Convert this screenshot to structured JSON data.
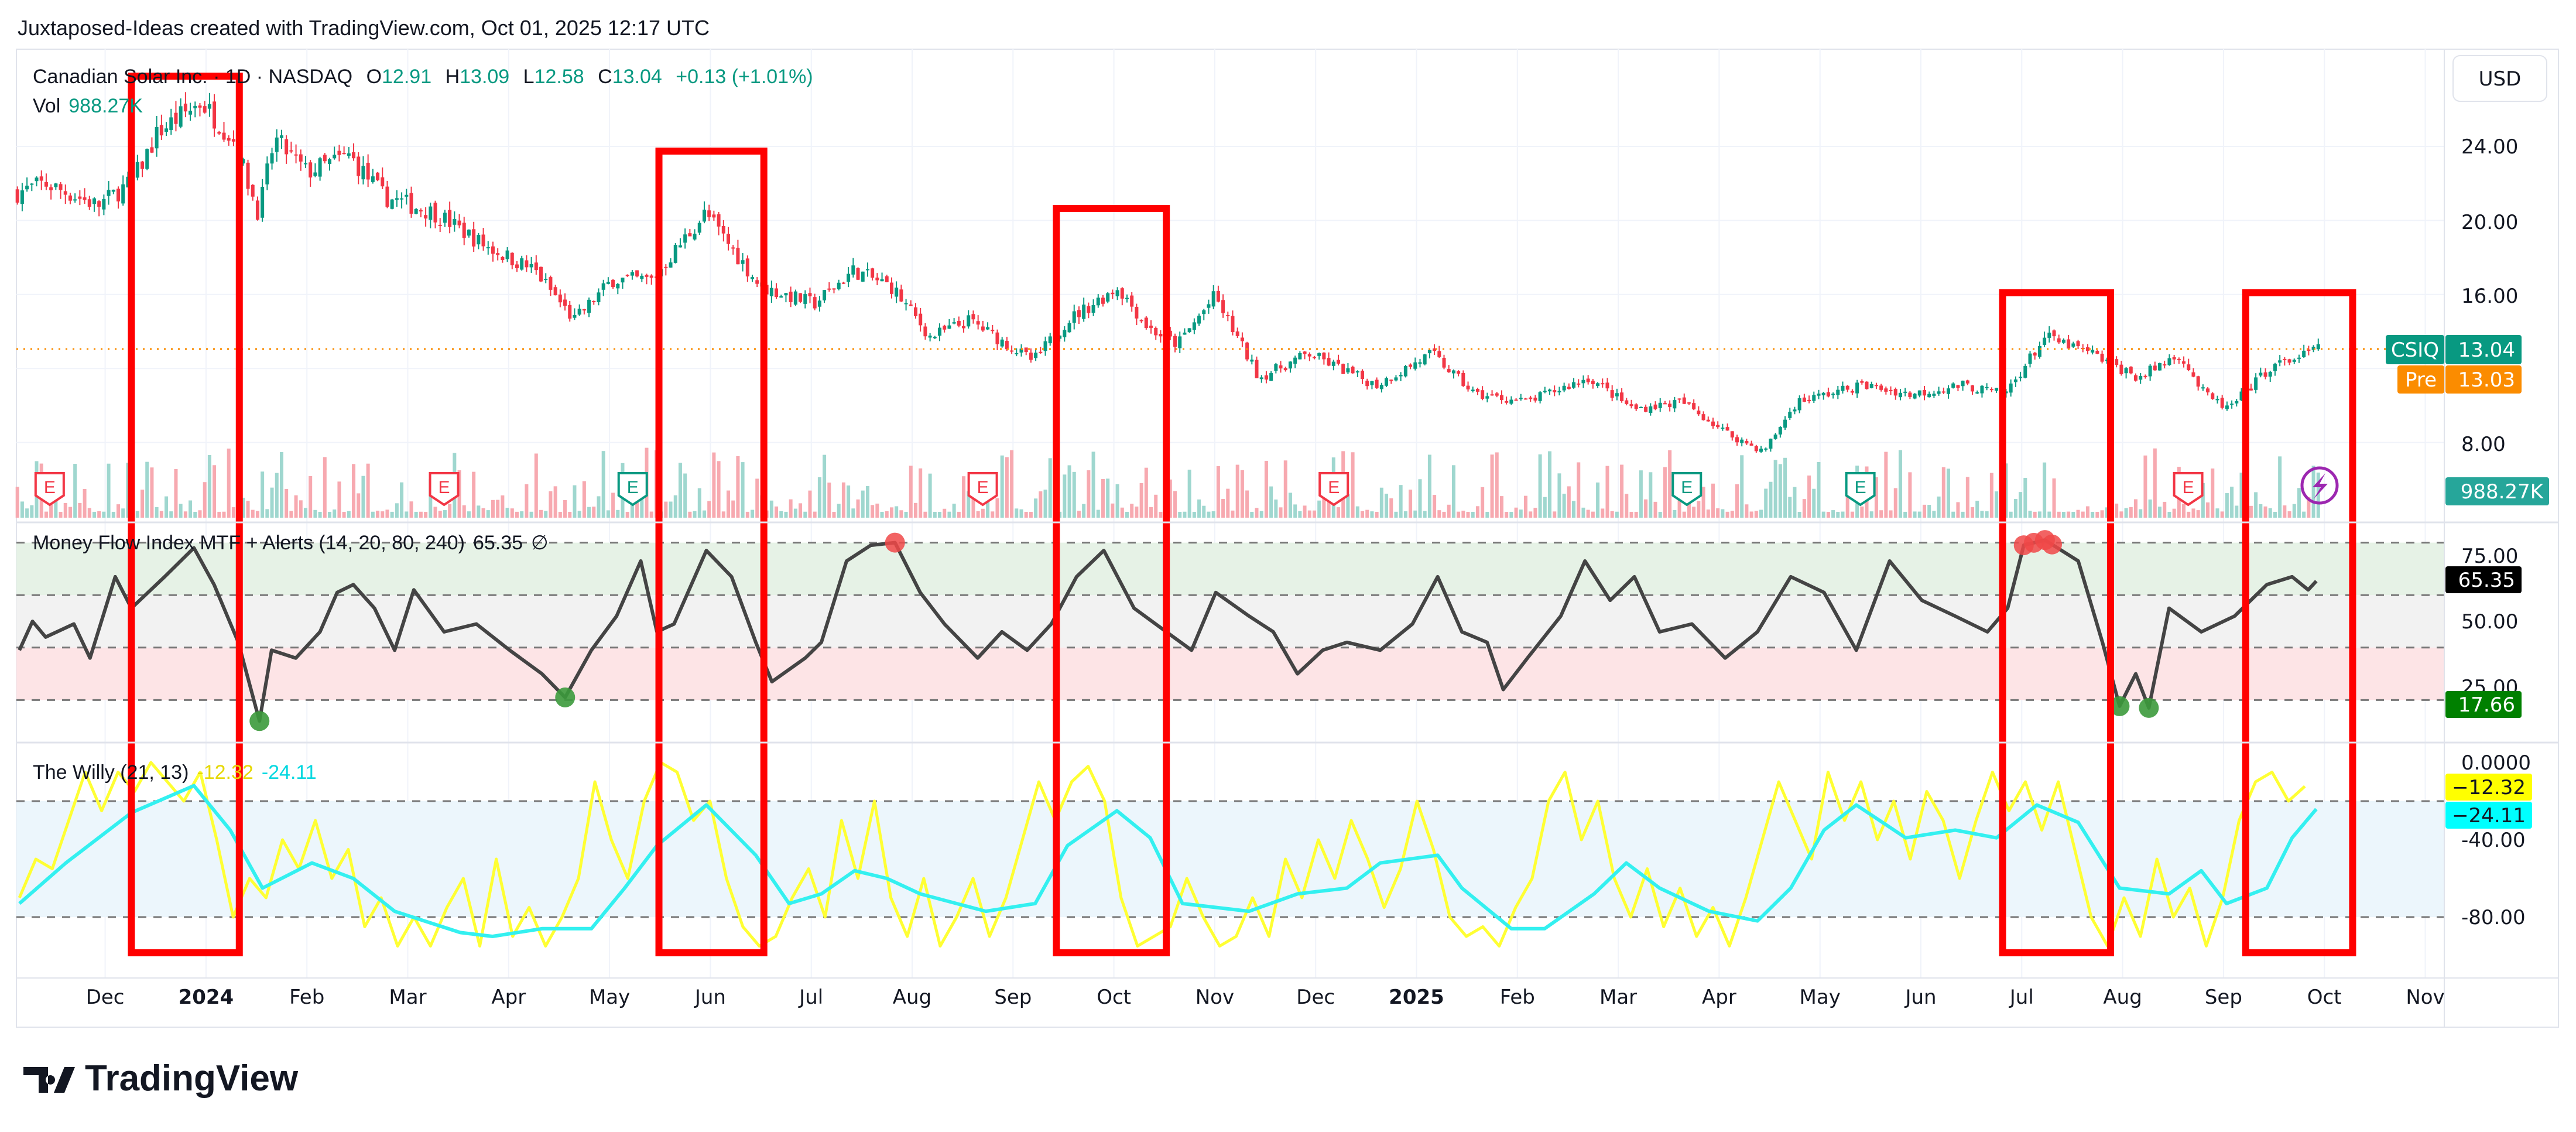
{
  "header": {
    "attribution": "Juxtaposed-Ideas created with TradingView.com, Oct 01, 2025 12:17 UTC"
  },
  "legend": {
    "symbol_name": "Canadian Solar Inc. · 1D · NASDAQ",
    "open_label": "O",
    "open": "12.91",
    "high_label": "H",
    "high": "13.09",
    "low_label": "L",
    "low": "12.58",
    "close_label": "C",
    "close": "13.04",
    "change": "+0.13 (+1.01%)",
    "vol_label": "Vol",
    "vol": "988.27K"
  },
  "price_axis": {
    "currency_button": "USD",
    "ticks": [
      "24.00",
      "20.00",
      "16.00",
      "8.00"
    ],
    "ticker_badge": "CSIQ",
    "last_price": "13.04",
    "pre_badge": "Pre",
    "pre_price": "13.03",
    "volume_badge": "988.27K"
  },
  "mfi": {
    "legend": "Money Flow Index MTF + Alerts (14, 20, 80, 240)",
    "value": "65.35",
    "symbol": "∅",
    "ticks": [
      "75.00",
      "50.00",
      "25.00"
    ],
    "badge_value": "65.35",
    "alert_badge": "17.66"
  },
  "willy": {
    "legend": "The Willy (21, 13)",
    "fast_value": "-12.32",
    "slow_value": "-24.11",
    "ticks": [
      "0.0000",
      "-40.00",
      "-80.00"
    ],
    "fast_badge": "−12.32",
    "slow_badge": "−24.11"
  },
  "time_axis": [
    "Dec",
    "2024",
    "Feb",
    "Mar",
    "Apr",
    "May",
    "Jun",
    "Jul",
    "Aug",
    "Sep",
    "Oct",
    "Nov",
    "Dec",
    "2025",
    "Feb",
    "Mar",
    "Apr",
    "May",
    "Jun",
    "Jul",
    "Aug",
    "Sep",
    "Oct",
    "Nov"
  ],
  "earnings_marker": "E",
  "footer": {
    "logo": "TradingView"
  },
  "colors": {
    "up": "#089981",
    "down": "#f23645",
    "mfi": "#444444",
    "willy_fast": "#ffff33",
    "willy_slow": "#33f0f0",
    "highlight": "#ff0000",
    "pre": "#fb8c00"
  },
  "chart_data": [
    {
      "type": "candlestick",
      "title": "CSIQ daily price",
      "x_unit": "months since 2023-12-01",
      "ylim": [
        6,
        28
      ],
      "close_anchors": [
        [
          -0.87,
          21.5
        ],
        [
          -0.6,
          22
        ],
        [
          -0.07,
          20.8
        ],
        [
          0.27,
          22.1
        ],
        [
          0.53,
          24.8
        ],
        [
          0.95,
          26.4
        ],
        [
          1.27,
          24.4
        ],
        [
          1.52,
          20.4
        ],
        [
          1.68,
          24.4
        ],
        [
          2.0,
          22.6
        ],
        [
          2.42,
          23.5
        ],
        [
          2.76,
          21.3
        ],
        [
          3.27,
          20.4
        ],
        [
          3.78,
          18.6
        ],
        [
          4.26,
          17.3
        ],
        [
          4.65,
          14.6
        ],
        [
          5.03,
          16.8
        ],
        [
          5.42,
          16.8
        ],
        [
          5.95,
          20.4
        ],
        [
          6.5,
          16.4
        ],
        [
          7.03,
          15.5
        ],
        [
          7.42,
          17.3
        ],
        [
          7.8,
          16.4
        ],
        [
          8.18,
          13.7
        ],
        [
          8.57,
          14.6
        ],
        [
          9.2,
          12.4
        ],
        [
          9.54,
          14.6
        ],
        [
          10.04,
          16.4
        ],
        [
          10.34,
          14.2
        ],
        [
          10.63,
          13.3
        ],
        [
          11.0,
          15.9
        ],
        [
          11.44,
          11.5
        ],
        [
          11.93,
          12.8
        ],
        [
          12.6,
          11.1
        ],
        [
          13.15,
          12.8
        ],
        [
          13.58,
          10.6
        ],
        [
          14.09,
          10.2
        ],
        [
          14.71,
          11.5
        ],
        [
          15.15,
          9.8
        ],
        [
          15.63,
          10.2
        ],
        [
          16.11,
          8.4
        ],
        [
          16.44,
          7.5
        ],
        [
          16.77,
          10.2
        ],
        [
          17.42,
          11.1
        ],
        [
          17.9,
          10.6
        ],
        [
          18.41,
          11.1
        ],
        [
          18.83,
          10.6
        ],
        [
          19.23,
          13.7
        ],
        [
          19.69,
          12.8
        ],
        [
          20.16,
          11.5
        ],
        [
          20.56,
          12.8
        ],
        [
          20.81,
          10.6
        ],
        [
          21.05,
          9.8
        ],
        [
          21.45,
          12.0
        ],
        [
          21.94,
          13.04
        ]
      ],
      "last": {
        "open": 12.91,
        "high": 13.09,
        "low": 12.58,
        "close": 13.04
      },
      "earnings_dates_t": [
        -0.55,
        3.36,
        5.23,
        8.7,
        12.18,
        15.68,
        17.4,
        20.65
      ],
      "earnings_colors": [
        "down",
        "down",
        "up",
        "down",
        "down",
        "up",
        "up",
        "down"
      ]
    },
    {
      "type": "line",
      "title": "Money Flow Index MTF + Alerts (14, 20, 80, 240)",
      "ylim": [
        10,
        85
      ],
      "levels": [
        80,
        60,
        40,
        20
      ],
      "points": [
        [
          -0.85,
          39
        ],
        [
          -0.72,
          50
        ],
        [
          -0.59,
          44
        ],
        [
          -0.31,
          49
        ],
        [
          -0.15,
          36
        ],
        [
          0.1,
          67
        ],
        [
          0.26,
          55
        ],
        [
          0.59,
          67
        ],
        [
          0.88,
          78
        ],
        [
          1.08,
          64
        ],
        [
          1.32,
          42
        ],
        [
          1.53,
          12
        ],
        [
          1.65,
          39
        ],
        [
          1.89,
          36
        ],
        [
          2.13,
          46
        ],
        [
          2.3,
          61
        ],
        [
          2.46,
          64
        ],
        [
          2.67,
          55
        ],
        [
          2.87,
          39
        ],
        [
          3.06,
          62
        ],
        [
          3.36,
          46
        ],
        [
          3.68,
          49
        ],
        [
          4.01,
          39
        ],
        [
          4.33,
          30
        ],
        [
          4.56,
          21
        ],
        [
          4.82,
          39
        ],
        [
          5.07,
          52
        ],
        [
          5.31,
          73
        ],
        [
          5.47,
          46
        ],
        [
          5.64,
          49
        ],
        [
          5.96,
          77
        ],
        [
          6.21,
          67
        ],
        [
          6.45,
          42
        ],
        [
          6.61,
          27
        ],
        [
          6.94,
          36
        ],
        [
          7.1,
          42
        ],
        [
          7.35,
          73
        ],
        [
          7.59,
          79
        ],
        [
          7.83,
          80
        ],
        [
          8.08,
          61
        ],
        [
          8.32,
          49
        ],
        [
          8.65,
          36
        ],
        [
          8.89,
          46
        ],
        [
          9.14,
          39
        ],
        [
          9.38,
          49
        ],
        [
          9.63,
          67
        ],
        [
          9.9,
          77
        ],
        [
          10.2,
          55
        ],
        [
          10.52,
          46
        ],
        [
          10.77,
          39
        ],
        [
          11.01,
          61
        ],
        [
          11.34,
          52
        ],
        [
          11.58,
          46
        ],
        [
          11.82,
          30
        ],
        [
          12.07,
          39
        ],
        [
          12.31,
          42
        ],
        [
          12.64,
          39
        ],
        [
          12.96,
          49
        ],
        [
          13.21,
          67
        ],
        [
          13.45,
          46
        ],
        [
          13.7,
          42
        ],
        [
          13.86,
          24
        ],
        [
          14.1,
          36
        ],
        [
          14.43,
          52
        ],
        [
          14.67,
          73
        ],
        [
          14.92,
          58
        ],
        [
          15.16,
          67
        ],
        [
          15.41,
          46
        ],
        [
          15.73,
          49
        ],
        [
          16.06,
          36
        ],
        [
          16.38,
          46
        ],
        [
          16.71,
          67
        ],
        [
          17.04,
          61
        ],
        [
          17.36,
          39
        ],
        [
          17.69,
          73
        ],
        [
          18.01,
          58
        ],
        [
          18.34,
          52
        ],
        [
          18.66,
          46
        ],
        [
          18.86,
          55
        ],
        [
          19.02,
          79
        ],
        [
          19.23,
          81
        ],
        [
          19.56,
          73
        ],
        [
          19.8,
          42
        ],
        [
          19.97,
          17.66
        ],
        [
          20.13,
          30
        ],
        [
          20.26,
          17
        ],
        [
          20.46,
          55
        ],
        [
          20.78,
          46
        ],
        [
          21.11,
          52
        ],
        [
          21.43,
          64
        ],
        [
          21.68,
          67
        ],
        [
          21.84,
          62
        ],
        [
          21.92,
          65.35
        ]
      ],
      "oversold_alerts_t": [
        1.53,
        4.56,
        19.97,
        20.26
      ],
      "overbought_alerts_t": [
        7.83,
        19.02,
        19.12,
        19.23,
        19.3
      ]
    },
    {
      "type": "line",
      "title": "The Willy (21, 13)",
      "ylim": [
        -100,
        5
      ],
      "levels": [
        -20,
        -80
      ],
      "series": [
        {
          "name": "fast",
          "t_start": -0.85,
          "t_step": 0.163,
          "values": [
            -70,
            -50,
            -55,
            -30,
            -5,
            -25,
            -5,
            -15,
            0,
            -10,
            -20,
            -5,
            -40,
            -80,
            -60,
            -70,
            -40,
            -55,
            -30,
            -60,
            -45,
            -85,
            -70,
            -95,
            -80,
            -95,
            -75,
            -60,
            -95,
            -50,
            -90,
            -75,
            -95,
            -80,
            -60,
            -10,
            -40,
            -60,
            -20,
            0,
            -5,
            -30,
            -20,
            -60,
            -85,
            -95,
            -90,
            -70,
            -55,
            -80,
            -30,
            -60,
            -20,
            -70,
            -90,
            -60,
            -95,
            -80,
            -60,
            -90,
            -70,
            -40,
            -10,
            -30,
            -10,
            -2,
            -20,
            -70,
            -95,
            -90,
            -85,
            -60,
            -80,
            -95,
            -90,
            -70,
            -90,
            -50,
            -70,
            -40,
            -60,
            -30,
            -50,
            -75,
            -55,
            -20,
            -45,
            -80,
            -90,
            -85,
            -95,
            -75,
            -60,
            -20,
            -5,
            -40,
            -20,
            -60,
            -80,
            -55,
            -85,
            -65,
            -90,
            -75,
            -95,
            -70,
            -40,
            -10,
            -30,
            -50,
            -5,
            -30,
            -10,
            -40,
            -20,
            -50,
            -15,
            -30,
            -60,
            -30,
            -5,
            -25,
            -10,
            -35,
            -10,
            -45,
            -80,
            -95,
            -70,
            -90,
            -50,
            -80,
            -65,
            -95,
            -70,
            -30,
            -10,
            -5,
            -20,
            -12.32
          ]
        },
        {
          "name": "slow",
          "points": [
            [
              -0.85,
              -73
            ],
            [
              -0.39,
              -52
            ],
            [
              0.26,
              -26
            ],
            [
              0.88,
              -12
            ],
            [
              1.24,
              -35
            ],
            [
              1.56,
              -65
            ],
            [
              2.05,
              -52
            ],
            [
              2.46,
              -60
            ],
            [
              2.87,
              -77
            ],
            [
              3.52,
              -88
            ],
            [
              3.84,
              -90
            ],
            [
              4.33,
              -86
            ],
            [
              4.82,
              -86
            ],
            [
              5.15,
              -65
            ],
            [
              5.47,
              -43
            ],
            [
              5.96,
              -22
            ],
            [
              6.45,
              -48
            ],
            [
              6.78,
              -73
            ],
            [
              7.1,
              -68
            ],
            [
              7.43,
              -56
            ],
            [
              7.75,
              -60
            ],
            [
              8.08,
              -68
            ],
            [
              8.73,
              -77
            ],
            [
              9.22,
              -73
            ],
            [
              9.54,
              -43
            ],
            [
              10.03,
              -25
            ],
            [
              10.36,
              -39
            ],
            [
              10.68,
              -73
            ],
            [
              11.34,
              -77
            ],
            [
              11.82,
              -68
            ],
            [
              12.31,
              -65
            ],
            [
              12.64,
              -52
            ],
            [
              13.21,
              -48
            ],
            [
              13.45,
              -65
            ],
            [
              13.94,
              -86
            ],
            [
              14.27,
              -86
            ],
            [
              14.76,
              -68
            ],
            [
              15.08,
              -52
            ],
            [
              15.41,
              -65
            ],
            [
              15.9,
              -77
            ],
            [
              16.38,
              -82
            ],
            [
              16.71,
              -65
            ],
            [
              17.04,
              -35
            ],
            [
              17.36,
              -22
            ],
            [
              17.85,
              -39
            ],
            [
              18.34,
              -35
            ],
            [
              18.75,
              -39
            ],
            [
              19.15,
              -22
            ],
            [
              19.56,
              -31
            ],
            [
              19.97,
              -65
            ],
            [
              20.46,
              -68
            ],
            [
              20.78,
              -56
            ],
            [
              21.03,
              -73
            ],
            [
              21.43,
              -65
            ],
            [
              21.68,
              -39
            ],
            [
              21.92,
              -24.11
            ]
          ]
        }
      ]
    }
  ],
  "highlight_boxes_t": [
    [
      0.26,
      1.33
    ],
    [
      5.49,
      6.53
    ],
    [
      9.43,
      10.52
    ],
    [
      18.81,
      19.88
    ],
    [
      21.22,
      22.28
    ]
  ]
}
